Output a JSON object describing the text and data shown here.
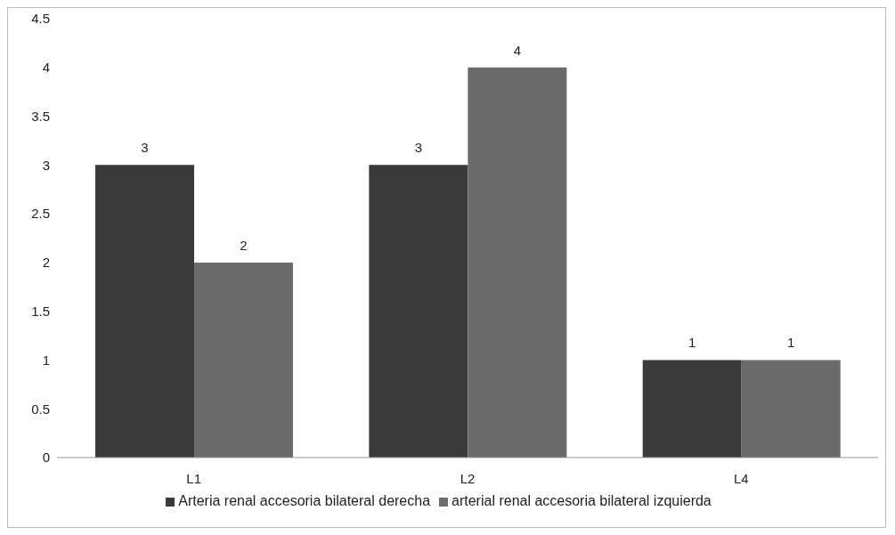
{
  "chart_data": {
    "type": "bar",
    "categories": [
      "L1",
      "L2",
      "L4"
    ],
    "series": [
      {
        "name": "Arteria renal accesoria bilateral derecha",
        "color": "#3a3a3a",
        "values": [
          3,
          3,
          1
        ]
      },
      {
        "name": "arterial renal accesoria bilateral izquierda",
        "color": "#6b6b6b",
        "values": [
          2,
          4,
          1
        ]
      }
    ],
    "ylim": [
      0,
      4.5
    ],
    "yticks": [
      0,
      0.5,
      1,
      1.5,
      2,
      2.5,
      3,
      3.5,
      4,
      4.5
    ],
    "grid": false,
    "legend": "bottom",
    "data_labels": true
  }
}
